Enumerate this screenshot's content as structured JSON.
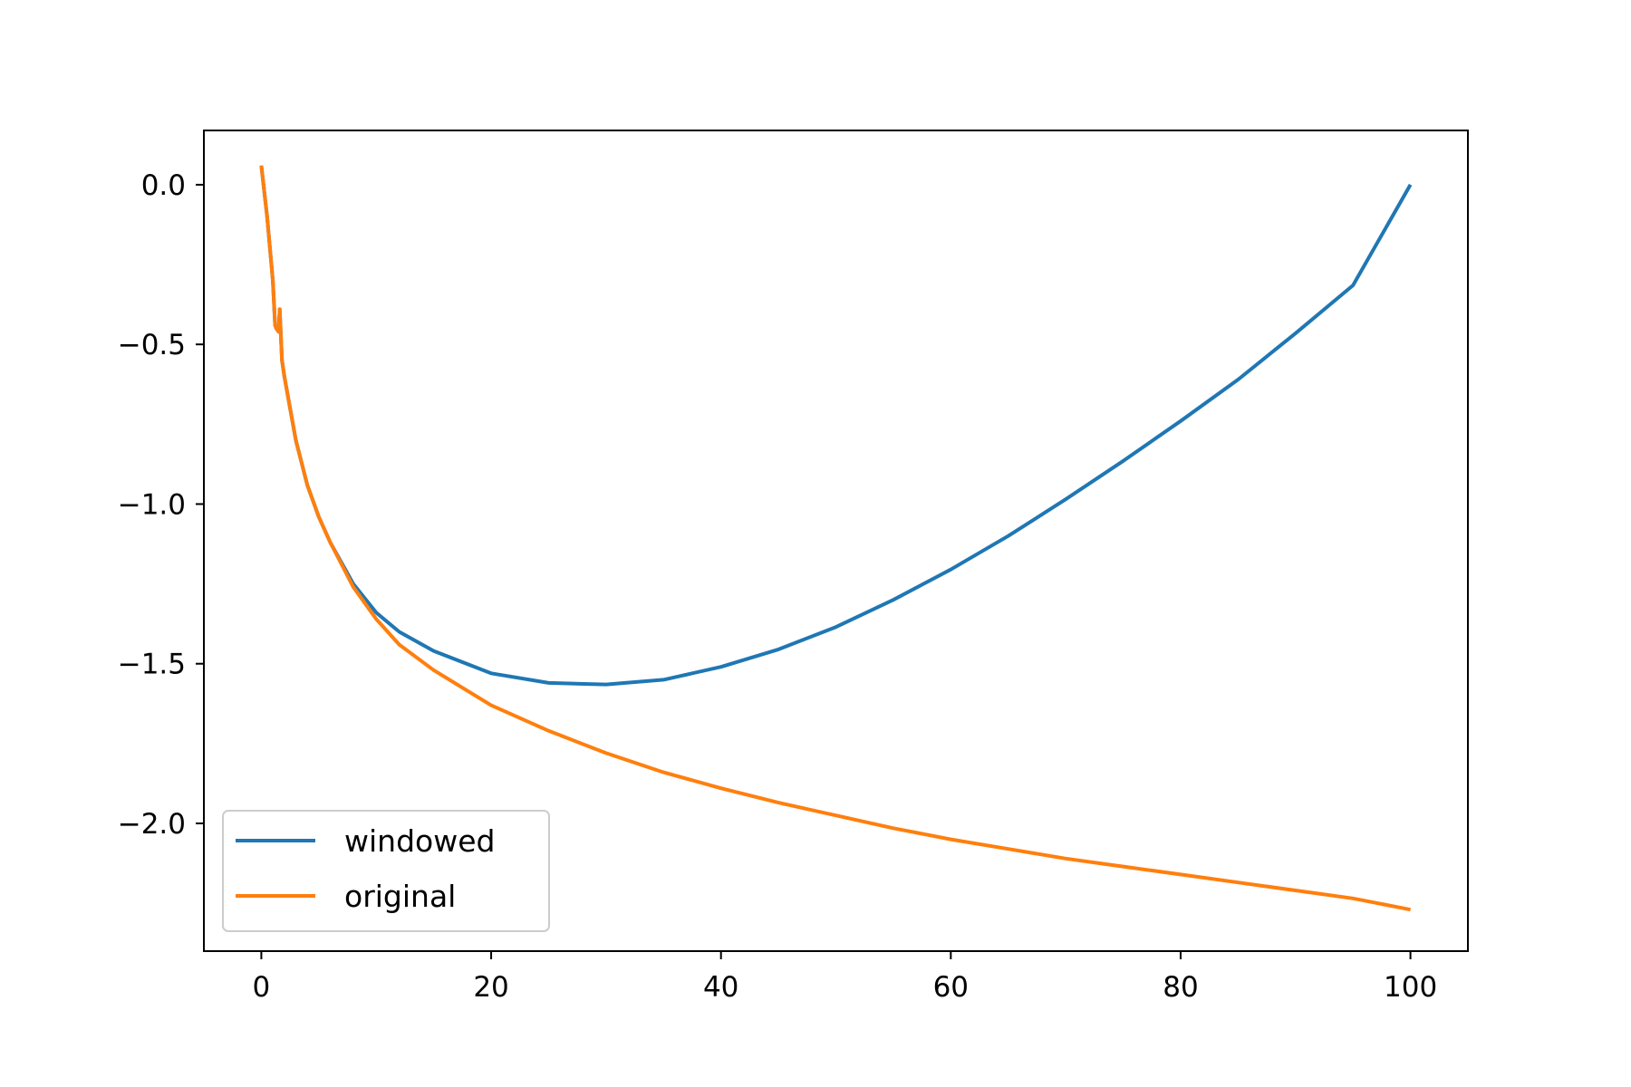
{
  "chart_data": {
    "type": "line",
    "title": "",
    "xlabel": "",
    "ylabel": "",
    "xlim": [
      -5,
      105
    ],
    "ylim": [
      -2.4,
      0.17
    ],
    "xticks": [
      {
        "value": 0,
        "label": "0"
      },
      {
        "value": 20,
        "label": "20"
      },
      {
        "value": 40,
        "label": "40"
      },
      {
        "value": 60,
        "label": "60"
      },
      {
        "value": 80,
        "label": "80"
      },
      {
        "value": 100,
        "label": "100"
      }
    ],
    "yticks": [
      {
        "value": 0.0,
        "label": "0.0"
      },
      {
        "value": -0.5,
        "label": "−0.5"
      },
      {
        "value": -1.0,
        "label": "−1.0"
      },
      {
        "value": -1.5,
        "label": "−1.5"
      },
      {
        "value": -2.0,
        "label": "−2.0"
      }
    ],
    "grid": false,
    "legend_position": "lower-left",
    "series": [
      {
        "name": "windowed",
        "color": "#1f77b4",
        "x": [
          0,
          0.5,
          1.0,
          1.2,
          1.3,
          1.5,
          1.6,
          1.8,
          2,
          3,
          4,
          5,
          6,
          8,
          10,
          12,
          15,
          20,
          25,
          30,
          35,
          40,
          45,
          50,
          55,
          60,
          65,
          70,
          75,
          80,
          85,
          90,
          95,
          100
        ],
        "y": [
          0.06,
          -0.1,
          -0.3,
          -0.44,
          -0.45,
          -0.46,
          -0.39,
          -0.55,
          -0.6,
          -0.8,
          -0.94,
          -1.04,
          -1.12,
          -1.25,
          -1.34,
          -1.4,
          -1.46,
          -1.53,
          -1.56,
          -1.565,
          -1.55,
          -1.51,
          -1.455,
          -1.385,
          -1.3,
          -1.205,
          -1.1,
          -0.985,
          -0.865,
          -0.74,
          -0.61,
          -0.465,
          -0.315,
          0.0
        ]
      },
      {
        "name": "original",
        "color": "#ff7f0e",
        "x": [
          0,
          0.5,
          1.0,
          1.2,
          1.3,
          1.5,
          1.6,
          1.8,
          2,
          3,
          4,
          5,
          6,
          8,
          10,
          12,
          15,
          20,
          25,
          30,
          35,
          40,
          45,
          50,
          55,
          60,
          65,
          70,
          75,
          80,
          85,
          90,
          95,
          100
        ],
        "y": [
          0.06,
          -0.1,
          -0.3,
          -0.44,
          -0.45,
          -0.46,
          -0.39,
          -0.55,
          -0.6,
          -0.8,
          -0.94,
          -1.04,
          -1.12,
          -1.26,
          -1.36,
          -1.44,
          -1.52,
          -1.63,
          -1.71,
          -1.78,
          -1.84,
          -1.89,
          -1.935,
          -1.975,
          -2.015,
          -2.05,
          -2.08,
          -2.11,
          -2.135,
          -2.16,
          -2.185,
          -2.21,
          -2.235,
          -2.27
        ]
      }
    ]
  }
}
